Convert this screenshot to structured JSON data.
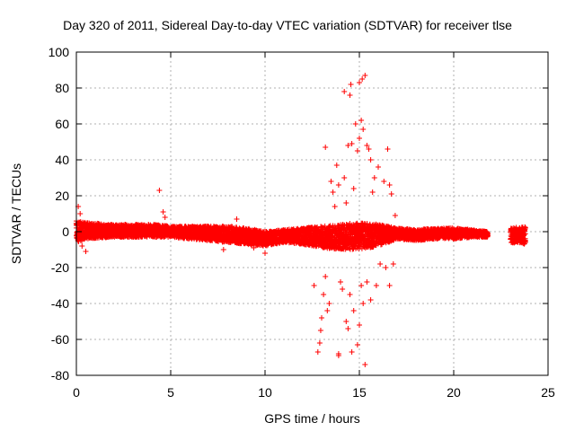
{
  "chart_data": {
    "type": "scatter",
    "title": "Day 320 of 2011, Sidereal Day-to-day VTEC variation (SDTVAR) for receiver tlse",
    "xlabel": "GPS time / hours",
    "ylabel": "SDTVAR / TECUs",
    "xlim": [
      0,
      25
    ],
    "ylim": [
      -80,
      100
    ],
    "xticks": [
      0,
      5,
      10,
      15,
      20,
      25
    ],
    "yticks": [
      -80,
      -60,
      -40,
      -20,
      0,
      20,
      40,
      60,
      80,
      100
    ],
    "grid": true,
    "marker": "+",
    "color": "#ff0000",
    "series": [
      {
        "name": "SDTVAR",
        "band": [
          {
            "x": 0.0,
            "lo": -6,
            "hi": 6
          },
          {
            "x": 0.5,
            "lo": -4,
            "hi": 5
          },
          {
            "x": 2.0,
            "lo": -3,
            "hi": 4
          },
          {
            "x": 4.0,
            "lo": -3,
            "hi": 4
          },
          {
            "x": 5.0,
            "lo": -3,
            "hi": 3
          },
          {
            "x": 7.0,
            "lo": -5,
            "hi": 3
          },
          {
            "x": 8.0,
            "lo": -6,
            "hi": 3
          },
          {
            "x": 9.0,
            "lo": -7,
            "hi": 2
          },
          {
            "x": 10.0,
            "lo": -8,
            "hi": 0
          },
          {
            "x": 11.0,
            "lo": -6,
            "hi": 1
          },
          {
            "x": 12.0,
            "lo": -7,
            "hi": 2
          },
          {
            "x": 13.0,
            "lo": -9,
            "hi": 3
          },
          {
            "x": 14.0,
            "lo": -10,
            "hi": 4
          },
          {
            "x": 15.0,
            "lo": -10,
            "hi": 5
          },
          {
            "x": 16.0,
            "lo": -8,
            "hi": 4
          },
          {
            "x": 17.0,
            "lo": -4,
            "hi": 2
          },
          {
            "x": 18.0,
            "lo": -5,
            "hi": 1
          },
          {
            "x": 19.0,
            "lo": -4,
            "hi": 2
          },
          {
            "x": 20.0,
            "lo": -4,
            "hi": 2
          },
          {
            "x": 21.0,
            "lo": -3,
            "hi": 1
          },
          {
            "x": 21.8,
            "lo": -3,
            "hi": 0
          },
          {
            "x": 23.0,
            "lo": -6,
            "hi": 2
          },
          {
            "x": 23.8,
            "lo": -7,
            "hi": 3
          }
        ],
        "gaps": [
          [
            21.8,
            23.0
          ]
        ],
        "outliers": [
          [
            0.1,
            14
          ],
          [
            0.2,
            10
          ],
          [
            0.3,
            -8
          ],
          [
            0.5,
            -11
          ],
          [
            4.4,
            23
          ],
          [
            4.6,
            11
          ],
          [
            4.7,
            8
          ],
          [
            7.8,
            -10
          ],
          [
            8.5,
            7
          ],
          [
            9.4,
            -9
          ],
          [
            10.0,
            -12
          ],
          [
            12.6,
            -30
          ],
          [
            12.8,
            -67
          ],
          [
            12.9,
            -62
          ],
          [
            12.95,
            -55
          ],
          [
            13.0,
            -48
          ],
          [
            13.1,
            -35
          ],
          [
            13.2,
            -25
          ],
          [
            13.3,
            -44
          ],
          [
            13.4,
            -40
          ],
          [
            13.2,
            47
          ],
          [
            13.5,
            28
          ],
          [
            13.6,
            22
          ],
          [
            13.7,
            14
          ],
          [
            13.9,
            26
          ],
          [
            13.8,
            37
          ],
          [
            13.9,
            -68
          ],
          [
            13.9,
            -69
          ],
          [
            14.0,
            -28
          ],
          [
            14.1,
            -32
          ],
          [
            14.2,
            30
          ],
          [
            14.3,
            16
          ],
          [
            14.4,
            48
          ],
          [
            14.5,
            76
          ],
          [
            14.6,
            49
          ],
          [
            14.7,
            24
          ],
          [
            14.3,
            -50
          ],
          [
            14.4,
            -54
          ],
          [
            14.5,
            -35
          ],
          [
            14.6,
            -67
          ],
          [
            14.7,
            -44
          ],
          [
            14.8,
            60
          ],
          [
            14.9,
            45
          ],
          [
            15.0,
            52
          ],
          [
            15.1,
            62
          ],
          [
            15.2,
            57
          ],
          [
            15.15,
            85
          ],
          [
            14.9,
            -63
          ],
          [
            15.0,
            -52
          ],
          [
            15.1,
            -30
          ],
          [
            15.2,
            -40
          ],
          [
            15.3,
            -74
          ],
          [
            15.4,
            48
          ],
          [
            15.5,
            46
          ],
          [
            15.6,
            40
          ],
          [
            15.7,
            22
          ],
          [
            15.8,
            30
          ],
          [
            16.0,
            36
          ],
          [
            15.4,
            -28
          ],
          [
            15.6,
            -38
          ],
          [
            15.9,
            -30
          ],
          [
            16.1,
            -18
          ],
          [
            16.3,
            28
          ],
          [
            16.5,
            46
          ],
          [
            16.6,
            26
          ],
          [
            16.7,
            21
          ],
          [
            16.9,
            9
          ],
          [
            16.4,
            -20
          ],
          [
            16.6,
            -30
          ],
          [
            16.8,
            -18
          ],
          [
            14.55,
            82
          ],
          [
            15.0,
            83
          ],
          [
            15.3,
            87
          ],
          [
            14.2,
            78
          ]
        ]
      }
    ]
  }
}
